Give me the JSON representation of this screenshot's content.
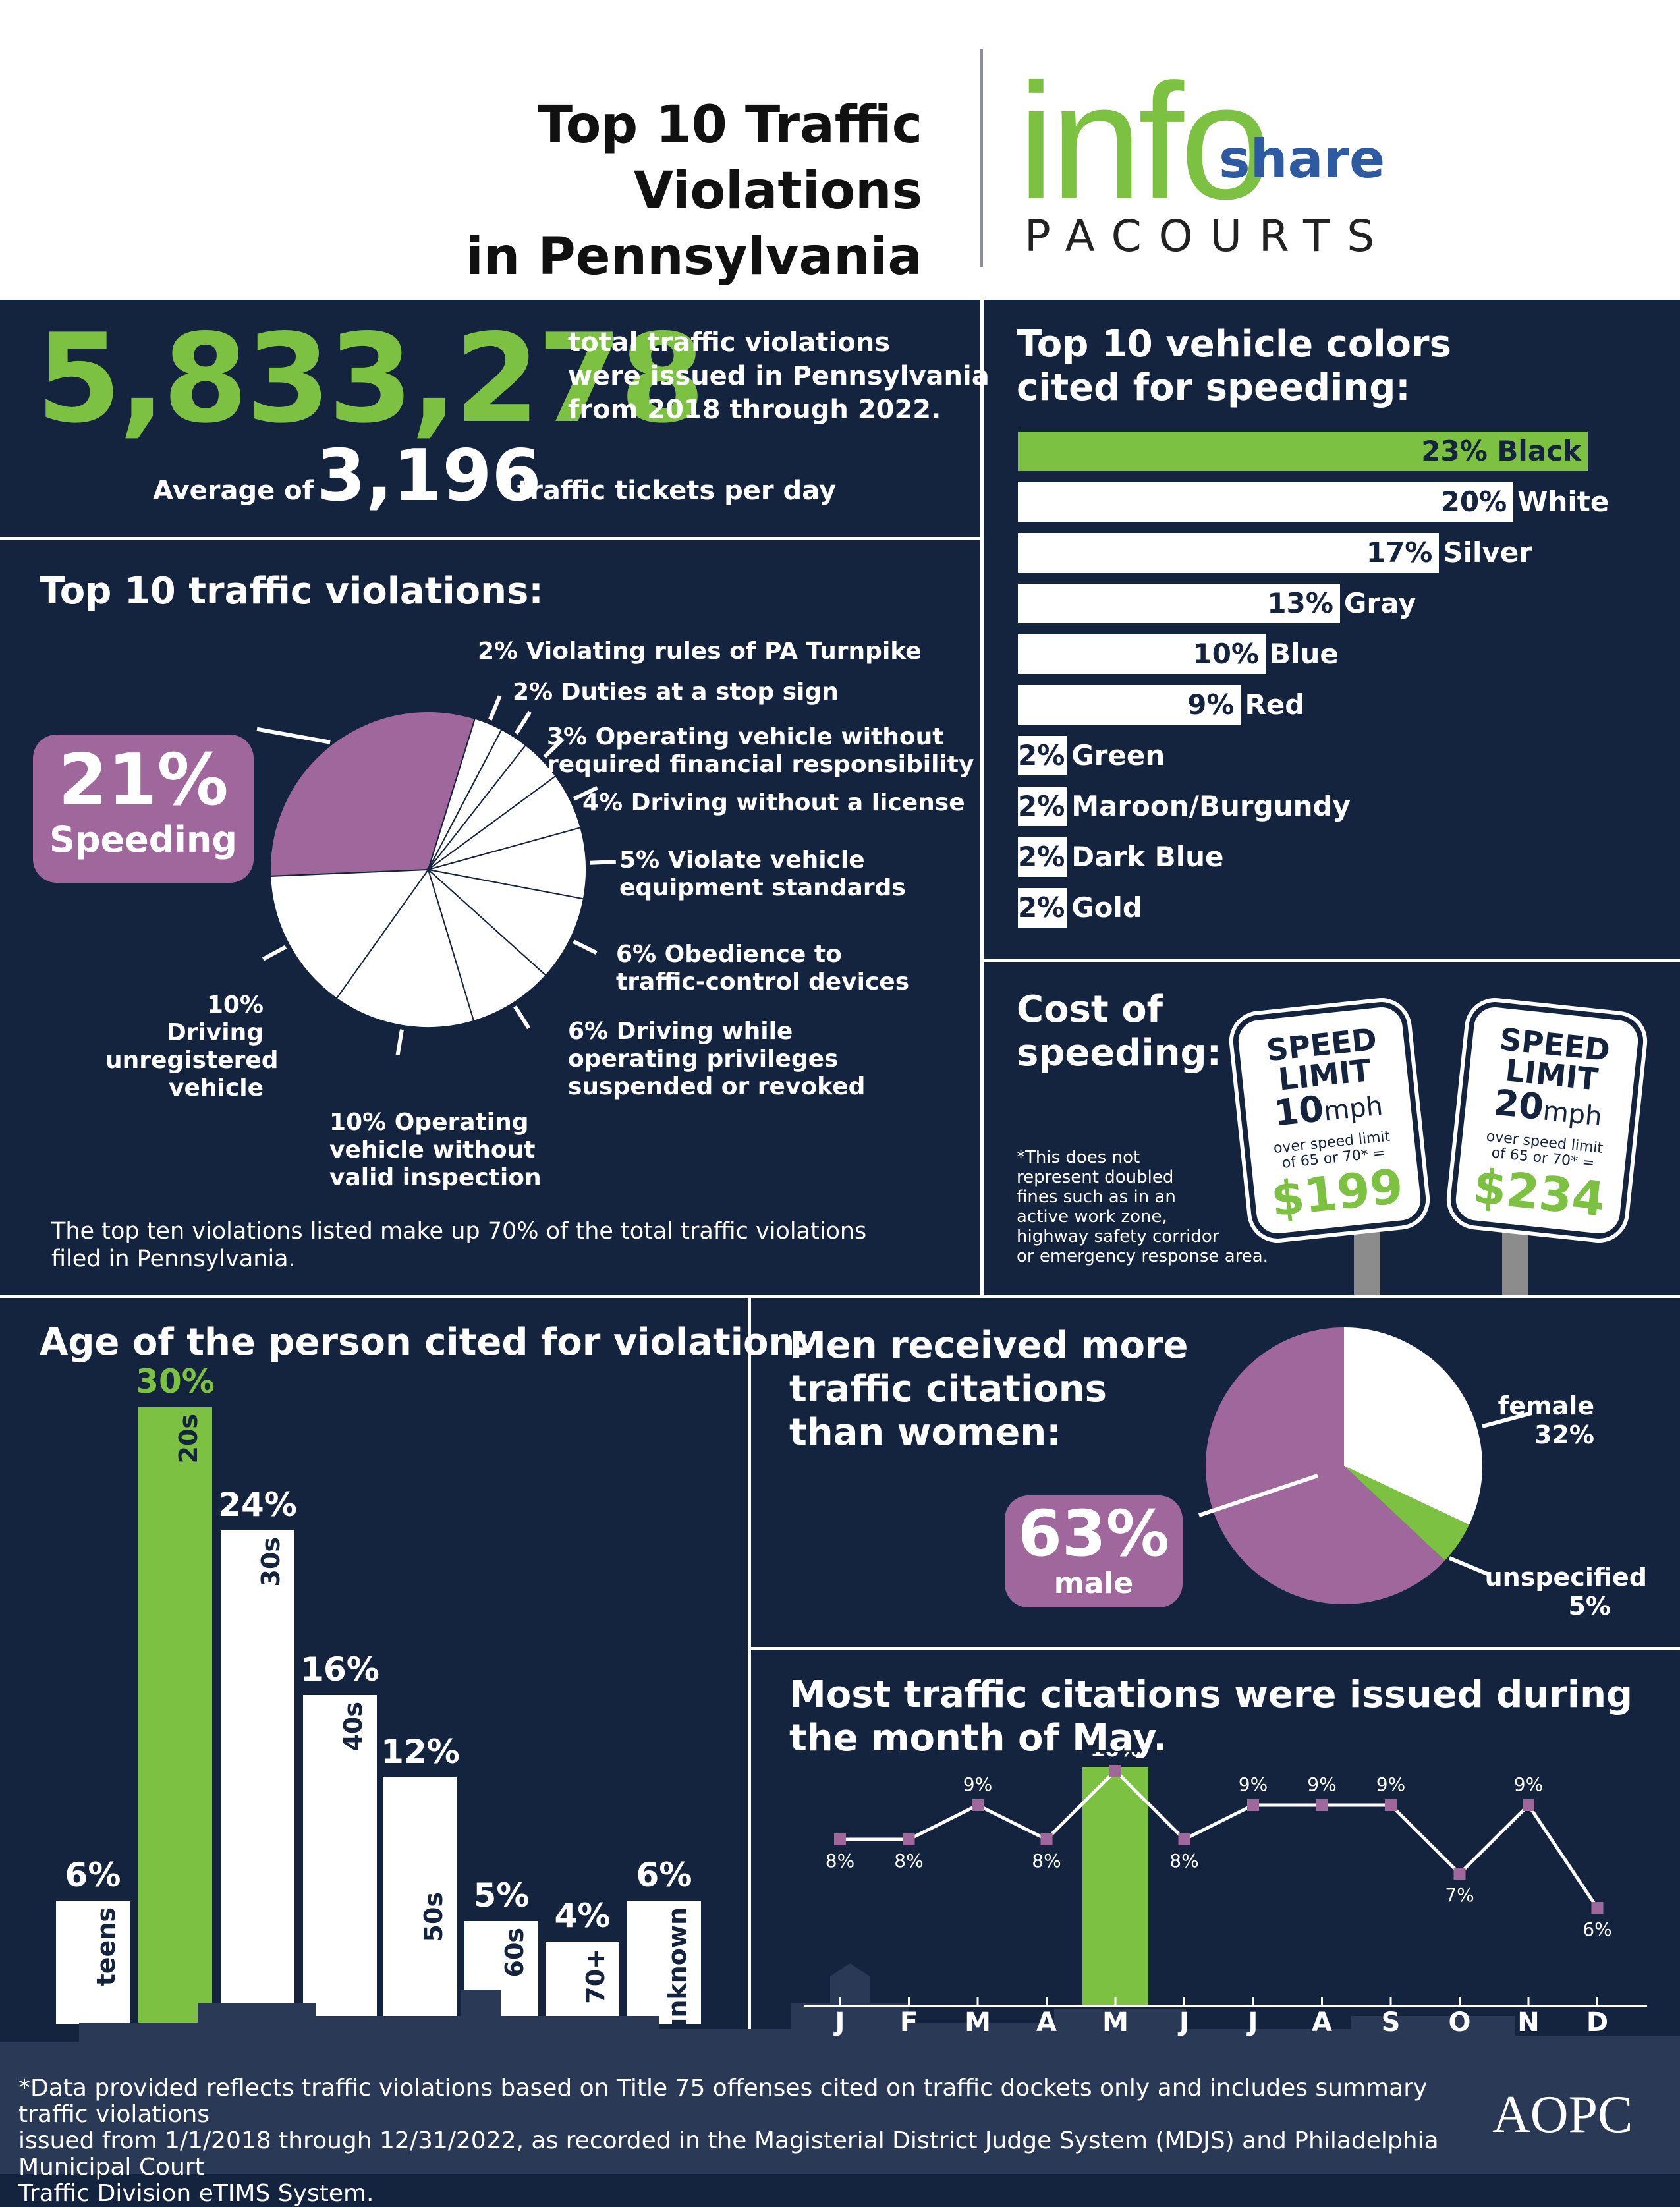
{
  "header": {
    "title_line1": "Top 10 Traffic Violations",
    "title_line2": "in Pennsylvania",
    "logo_info": "info",
    "logo_share": "share",
    "logo_pacourts": "PACOURTS"
  },
  "totals": {
    "total_number": "5,833,278",
    "total_text_line1": "total traffic violations",
    "total_text_line2": "were issued in Pennsylvania",
    "total_text_line3": "from 2018 through 2022.",
    "avg_prefix": "Average of",
    "avg_number": "3,196",
    "avg_suffix": "traffic tickets per day"
  },
  "violations": {
    "title": "Top 10 traffic violations:",
    "highlight_pct": "21%",
    "highlight_label": "Speeding",
    "labels": [
      {
        "line1": "2% Violating rules of PA Turnpike",
        "line2": ""
      },
      {
        "line1": "2% Duties at a stop sign",
        "line2": ""
      },
      {
        "line1": "3% Operating vehicle without",
        "line2": "required financial responsibility"
      },
      {
        "line1": "4% Driving without a license",
        "line2": ""
      },
      {
        "line1": "5% Violate vehicle",
        "line2": "equipment standards"
      },
      {
        "line1": "6% Obedience to",
        "line2": "traffic-control devices"
      },
      {
        "line1": "6% Driving while",
        "line2": "operating privileges",
        "line3": "suspended or revoked"
      },
      {
        "line1": "10% Operating",
        "line2": "vehicle without",
        "line3": "valid inspection"
      },
      {
        "line1": "10% Driving",
        "line2": "unregistered",
        "line3": "vehicle"
      }
    ],
    "note_line1": "The top ten violations listed make up 70% of the total traffic violations",
    "note_line2": "filed in Pennsylvania."
  },
  "colors_section": {
    "title_line1": "Top 10 vehicle colors",
    "title_line2": "cited for speeding:"
  },
  "cost": {
    "title_line1": "Cost of",
    "title_line2": "speeding:",
    "note": [
      "*This does not",
      "represent doubled",
      "fines such as in an",
      "active work zone,",
      "highway safety corridor",
      "or emergency response area."
    ],
    "sign1": {
      "top": "SPEED",
      "mid": "LIMIT",
      "mph_num": "10",
      "mph_unit": "mph",
      "sub1": "over speed limit",
      "sub2": "of 65 or 70* =",
      "price": "$199"
    },
    "sign2": {
      "top": "SPEED",
      "mid": "LIMIT",
      "mph_num": "20",
      "mph_unit": "mph",
      "sub1": "over speed limit",
      "sub2": "of 65 or 70* =",
      "price": "$234"
    }
  },
  "age": {
    "title": "Age of the person cited for violation:"
  },
  "gender": {
    "title_line1": "Men received more",
    "title_line2": "traffic citations",
    "title_line3": "than women:",
    "male_pct": "63%",
    "male_label": "male",
    "female_label": "female",
    "female_pct": "32%",
    "unspec_label": "unspecified",
    "unspec_pct": "5%"
  },
  "monthly": {
    "title_line1": "Most traffic citations were issued during",
    "title_line2": "the month of May."
  },
  "footer": {
    "line1": "*Data provided reflects traffic violations based on Title 75 offenses cited on traffic dockets only and includes summary traffic violations",
    "line2": "issued from 1/1/2018 through 12/31/2022, as recorded in the Magisterial District Judge System (MDJS) and Philadelphia Municipal Court",
    "line3": "Traffic Division eTIMS System.",
    "aopc": "AOPC"
  },
  "chart_data": [
    {
      "type": "pie",
      "title": "Top 10 traffic violations:",
      "categories": [
        "Speeding",
        "Violating rules of PA Turnpike",
        "Duties at a stop sign",
        "Operating vehicle without required financial responsibility",
        "Driving without a license",
        "Violate vehicle equipment standards",
        "Obedience to traffic-control devices",
        "Driving while operating privileges suspended or revoked",
        "Operating vehicle without valid inspection",
        "Driving unregistered vehicle"
      ],
      "values": [
        21,
        2,
        2,
        3,
        4,
        5,
        6,
        6,
        10,
        10
      ]
    },
    {
      "type": "bar",
      "title": "Top 10 vehicle colors cited for speeding:",
      "categories": [
        "Black",
        "White",
        "Silver",
        "Gray",
        "Blue",
        "Red",
        "Green",
        "Maroon/Burgundy",
        "Dark Blue",
        "Gold"
      ],
      "values": [
        23,
        20,
        17,
        13,
        10,
        9,
        2,
        2,
        2,
        2
      ],
      "labels": [
        "23%",
        "20%",
        "17%",
        "13%",
        "10%",
        "9%",
        "2%",
        "2%",
        "2%",
        "2%"
      ],
      "highlight_color": "#7dc142"
    },
    {
      "type": "bar",
      "title": "Age of the person cited for violation:",
      "categories": [
        "teens",
        "20s",
        "30s",
        "40s",
        "50s",
        "60s",
        "70+",
        "unknown"
      ],
      "values": [
        6,
        30,
        24,
        16,
        12,
        5,
        4,
        6
      ],
      "labels": [
        "6%",
        "30%",
        "24%",
        "16%",
        "12%",
        "5%",
        "4%",
        "6%"
      ],
      "highlight_color": "#7dc142"
    },
    {
      "type": "pie",
      "title": "Men received more traffic citations than women:",
      "categories": [
        "male",
        "female",
        "unspecified"
      ],
      "values": [
        63,
        32,
        5
      ],
      "colors": [
        "#a0679c",
        "#ffffff",
        "#7dc142"
      ]
    },
    {
      "type": "line",
      "title": "Most traffic citations were issued during the month of May.",
      "categories": [
        "J",
        "F",
        "M",
        "A",
        "M",
        "J",
        "J",
        "A",
        "S",
        "O",
        "N",
        "D"
      ],
      "values": [
        8,
        8,
        9,
        8,
        10,
        8,
        9,
        9,
        9,
        7,
        9,
        6
      ],
      "labels": [
        "8%",
        "8%",
        "9%",
        "8%",
        "10%",
        "8%",
        "9%",
        "9%",
        "9%",
        "7%",
        "9%",
        "6%"
      ],
      "highlight_index": 4
    }
  ],
  "palette": {
    "navy": "#14243f",
    "green": "#7dc142",
    "purple": "#a0679c",
    "white": "#ffffff"
  }
}
